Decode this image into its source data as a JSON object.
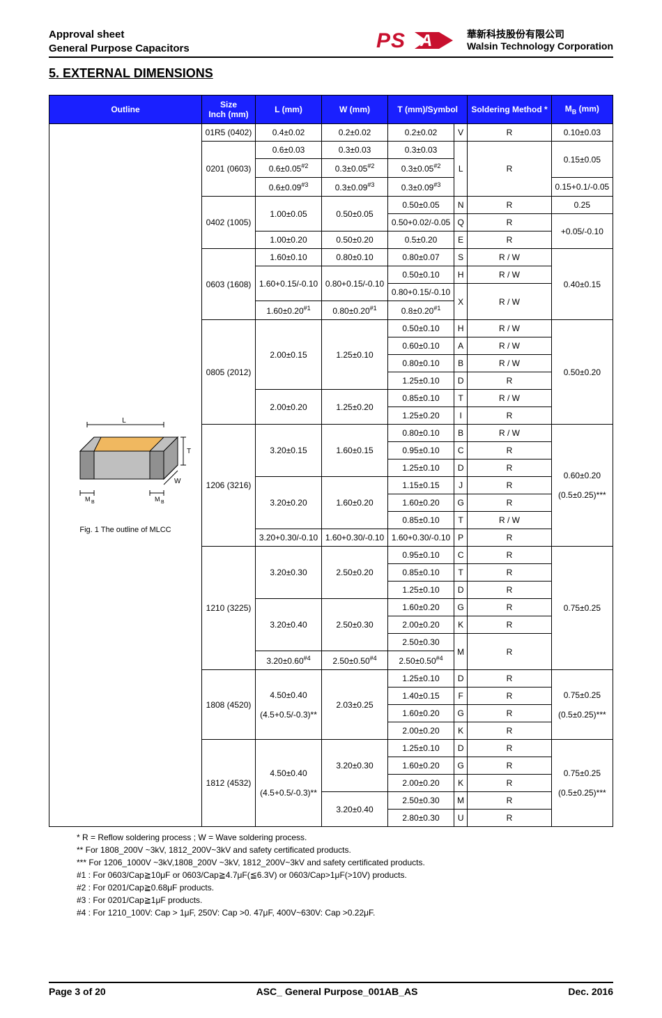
{
  "header": {
    "line1": "Approval sheet",
    "line2": "General Purpose Capacitors",
    "logo_text": "PSA",
    "corp_cn": "華新科技股份有限公司",
    "corp_en": "Walsin Technology Corporation",
    "logo_color": "#c8102e"
  },
  "section_title": "5. EXTERNAL DIMENSIONS",
  "columns": {
    "outline": "Outline",
    "size": "Size\nInch (mm)",
    "l": "L (mm)",
    "w": "W (mm)",
    "t": "T (mm)/Symbol",
    "soldering": "Soldering Method *",
    "mb": "M",
    "mb_suffix": " (mm)"
  },
  "header_bg": "#1a20ff",
  "outline_caption": "Fig. 1 The outline of MLCC",
  "diagram_labels": {
    "L": "L",
    "W": "W",
    "T": "T",
    "MB": "M"
  },
  "rows": [
    {
      "size": "01R5 (0402)",
      "L": "0.4±0.02",
      "W": "0.2±0.02",
      "T": "0.2±0.02",
      "sym": "V",
      "sold": "R",
      "MB": "0.10±0.03"
    },
    {
      "size": "0201 (0603)",
      "size_rs": 3,
      "L": "0.6±0.03",
      "W": "0.3±0.03",
      "T": "0.3±0.03",
      "sym": "L",
      "sym_rs": 3,
      "sold": "R",
      "sold_rs": 3,
      "MB": "0.15±0.05",
      "MB_rs": 2
    },
    {
      "L": "0.6±0.05",
      "L_sup": "#2",
      "W": "0.3±0.05",
      "W_sup": "#2",
      "T": "0.3±0.05",
      "T_sup": "#2"
    },
    {
      "L": "0.6±0.09",
      "L_sup": "#3",
      "W": "0.3±0.09",
      "W_sup": "#3",
      "T": "0.3±0.09",
      "T_sup": "#3",
      "MB": "0.15+0.1/-0.05"
    },
    {
      "size": "0402 (1005)",
      "size_rs": 3,
      "L": "1.00±0.05",
      "L_rs": 2,
      "W": "0.50±0.05",
      "W_rs": 2,
      "T": "0.50±0.05",
      "sym": "N",
      "sold": "R",
      "MB": "0.25"
    },
    {
      "T": "0.50+0.02/-0.05",
      "sym": "Q",
      "sold": "R",
      "MB": "+0.05/-0.10",
      "MB_rs": 2
    },
    {
      "L": "1.00±0.20",
      "W": "0.50±0.20",
      "T": "0.5±0.20",
      "sym": "E",
      "sold": "R"
    },
    {
      "size": "0603 (1608)",
      "size_rs": 4,
      "L": "1.60±0.10",
      "W": "0.80±0.10",
      "T": "0.80±0.07",
      "sym": "S",
      "sold": "R / W",
      "MB": "0.40±0.15",
      "MB_rs": 4
    },
    {
      "L": "1.60+0.15/-0.10",
      "L_rs": 2,
      "W": "0.80+0.15/-0.10",
      "W_rs": 2,
      "T": "0.50±0.10",
      "sym": "H",
      "sold": "R / W"
    },
    {
      "T": "0.80+0.15/-0.10",
      "sym": "X",
      "sym_rs": 2,
      "sold": "R / W",
      "sold_rs": 2
    },
    {
      "L": "1.60±0.20",
      "L_sup": "#1",
      "W": "0.80±0.20",
      "W_sup": "#1",
      "T": "0.8±0.20",
      "T_sup": "#1"
    },
    {
      "size": "0805 (2012)",
      "size_rs": 6,
      "L": "2.00±0.15",
      "L_rs": 4,
      "W": "1.25±0.10",
      "W_rs": 4,
      "T": "0.50±0.10",
      "sym": "H",
      "sold": "R / W",
      "MB": "0.50±0.20",
      "MB_rs": 6
    },
    {
      "T": "0.60±0.10",
      "sym": "A",
      "sold": "R / W"
    },
    {
      "T": "0.80±0.10",
      "sym": "B",
      "sold": "R / W"
    },
    {
      "T": "1.25±0.10",
      "sym": "D",
      "sold": "R"
    },
    {
      "L": "2.00±0.20",
      "L_rs": 2,
      "W": "1.25±0.20",
      "W_rs": 2,
      "T": "0.85±0.10",
      "sym": "T",
      "sold": "R / W"
    },
    {
      "T": "1.25±0.20",
      "sym": "I",
      "sold": "R"
    },
    {
      "size": "1206 (3216)",
      "size_rs": 7,
      "L": "3.20±0.15",
      "L_rs": 3,
      "W": "1.60±0.15",
      "W_rs": 3,
      "T": "0.80±0.10",
      "sym": "B",
      "sold": "R / W",
      "MB": "0.60±0.20\n\n(0.5±0.25)***",
      "MB_rs": 7,
      "MB_multi": true
    },
    {
      "T": "0.95±0.10",
      "sym": "C",
      "sold": "R"
    },
    {
      "T": "1.25±0.10",
      "sym": "D",
      "sold": "R"
    },
    {
      "L": "3.20±0.20",
      "L_rs": 3,
      "W": "1.60±0.20",
      "W_rs": 3,
      "T": "1.15±0.15",
      "sym": "J",
      "sold": "R"
    },
    {
      "T": "1.60±0.20",
      "sym": "G",
      "sold": "R"
    },
    {
      "T": "0.85±0.10",
      "sym": "T",
      "sold": "R / W"
    },
    {
      "L": "3.20+0.30/-0.10",
      "W": "1.60+0.30/-0.10",
      "T": "1.60+0.30/-0.10",
      "sym": "P",
      "sold": "R"
    },
    {
      "size": "1210 (3225)",
      "size_rs": 7,
      "L": "3.20±0.30",
      "L_rs": 3,
      "W": "2.50±0.20",
      "W_rs": 3,
      "T": "0.95±0.10",
      "sym": "C",
      "sold": "R",
      "MB": "0.75±0.25",
      "MB_rs": 7
    },
    {
      "T": "0.85±0.10",
      "sym": "T",
      "sold": "R"
    },
    {
      "T": "1.25±0.10",
      "sym": "D",
      "sold": "R"
    },
    {
      "L": "3.20±0.40",
      "L_rs": 3,
      "W": "2.50±0.30",
      "W_rs": 3,
      "T": "1.60±0.20",
      "sym": "G",
      "sold": "R"
    },
    {
      "T": "2.00±0.20",
      "sym": "K",
      "sold": "R"
    },
    {
      "T": "2.50±0.30",
      "sym": "M",
      "sym_rs": 2,
      "sold": "R",
      "sold_rs": 2
    },
    {
      "L": "3.20±0.60",
      "L_sup": "#4",
      "W": "2.50±0.50",
      "W_sup": "#4",
      "T": "2.50±0.50",
      "T_sup": "#4"
    },
    {
      "size": "1808 (4520)",
      "size_rs": 4,
      "L": "4.50±0.40\n\n(4.5+0.5/-0.3)**",
      "L_rs": 4,
      "L_multi": true,
      "W": "2.03±0.25",
      "W_rs": 4,
      "T": "1.25±0.10",
      "sym": "D",
      "sold": "R",
      "MB": "0.75±0.25\n\n(0.5±0.25)***",
      "MB_rs": 4,
      "MB_multi": true
    },
    {
      "T": "1.40±0.15",
      "sym": "F",
      "sold": "R"
    },
    {
      "T": "1.60±0.20",
      "sym": "G",
      "sold": "R"
    },
    {
      "T": "2.00±0.20",
      "sym": "K",
      "sold": "R"
    },
    {
      "size": "1812 (4532)",
      "size_rs": 5,
      "L": "4.50±0.40\n\n(4.5+0.5/-0.3)**",
      "L_rs": 5,
      "L_multi": true,
      "W": "3.20±0.30",
      "W_rs": 3,
      "T": "1.25±0.10",
      "sym": "D",
      "sold": "R",
      "MB": "0.75±0.25\n\n(0.5±0.25)***",
      "MB_rs": 5,
      "MB_multi": true
    },
    {
      "T": "1.60±0.20",
      "sym": "G",
      "sold": "R"
    },
    {
      "T": "2.00±0.20",
      "sym": "K",
      "sold": "R"
    },
    {
      "W": "3.20±0.40",
      "W_rs": 2,
      "T": "2.50±0.30",
      "sym": "M",
      "sold": "R"
    },
    {
      "T": "2.80±0.30",
      "sym": "U",
      "sold": "R"
    }
  ],
  "notes": [
    "* R = Reflow soldering process ; W = Wave soldering process.",
    "** For 1808_200V ~3kV, 1812_200V~3kV and safety certificated products.",
    "*** For 1206_1000V ~3kV,1808_200V ~3kV, 1812_200V~3kV and safety certificated products.",
    "#1 : For 0603/Cap≧10μF or 0603/Cap≧4.7μF(≦6.3V) or 0603/Cap>1μF(>10V) products.",
    "#2 : For 0201/Cap≧0.68μF products.",
    "#3 : For 0201/Cap≧1μF products.",
    "#4 : For 1210_100V: Cap > 1μF, 250V: Cap >0. 47μF, 400V~630V: Cap >0.22μF."
  ],
  "footer": {
    "page": "Page 3 of 20",
    "doc": "ASC_ General Purpose_001AB_AS",
    "date": "Dec. 2016"
  },
  "diagram_colors": {
    "top": "#f0b860",
    "side": "#d9d9d9",
    "front": "#bfbfbf",
    "end_top": "#c0c0c0",
    "end_side": "#a0a0a0",
    "end_front": "#909090"
  }
}
